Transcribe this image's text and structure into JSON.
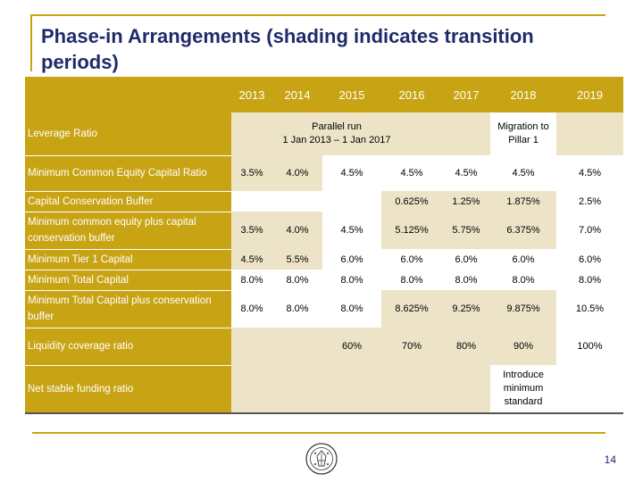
{
  "slide": {
    "title": "Phase-in Arrangements (shading indicates transition periods)",
    "page_number": "14",
    "logo": "university-seal",
    "colors": {
      "accent": "#c8a415",
      "shading": "#ede4c8",
      "title": "#1f2a6b"
    }
  },
  "table": {
    "years": [
      "2013",
      "2014",
      "2015",
      "2016",
      "2017",
      "2018",
      "2019"
    ],
    "leverage_ratio": {
      "label": "Leverage Ratio",
      "parallel_run": "Parallel run\n1 Jan 2013 – 1 Jan 2017",
      "migration": "Migration to\nPillar 1"
    },
    "rows": [
      {
        "label": "Minimum Common Equity Capital Ratio",
        "values": [
          "3.5%",
          "4.0%",
          "4.5%",
          "4.5%",
          "4.5%",
          "4.5%",
          "4.5%"
        ]
      },
      {
        "label": "Capital Conservation Buffer",
        "values": [
          "",
          "",
          "",
          "0.625%",
          "1.25%",
          "1.875%",
          "2.5%"
        ]
      },
      {
        "label": "Minimum common equity plus capital conservation buffer",
        "values": [
          "3.5%",
          "4.0%",
          "4.5%",
          "5.125%",
          "5.75%",
          "6.375%",
          "7.0%"
        ]
      },
      {
        "label": "Minimum Tier 1 Capital",
        "values": [
          "4.5%",
          "5.5%",
          "6.0%",
          "6.0%",
          "6.0%",
          "6.0%",
          "6.0%"
        ]
      },
      {
        "label": "Minimum Total Capital",
        "values": [
          "8.0%",
          "8.0%",
          "8.0%",
          "8.0%",
          "8.0%",
          "8.0%",
          "8.0%"
        ]
      },
      {
        "label": "Minimum Total Capital plus conservation buffer",
        "values": [
          "8.0%",
          "8.0%",
          "8.0%",
          "8.625%",
          "9.25%",
          "9.875%",
          "10.5%"
        ]
      }
    ],
    "liquidity": {
      "label": "Liquidity coverage ratio",
      "values": [
        "",
        "",
        "60%",
        "70%",
        "80%",
        "90%",
        "100%"
      ]
    },
    "nsfr": {
      "label": "Net stable funding ratio",
      "note": "Introduce\nminimum\nstandard"
    }
  }
}
